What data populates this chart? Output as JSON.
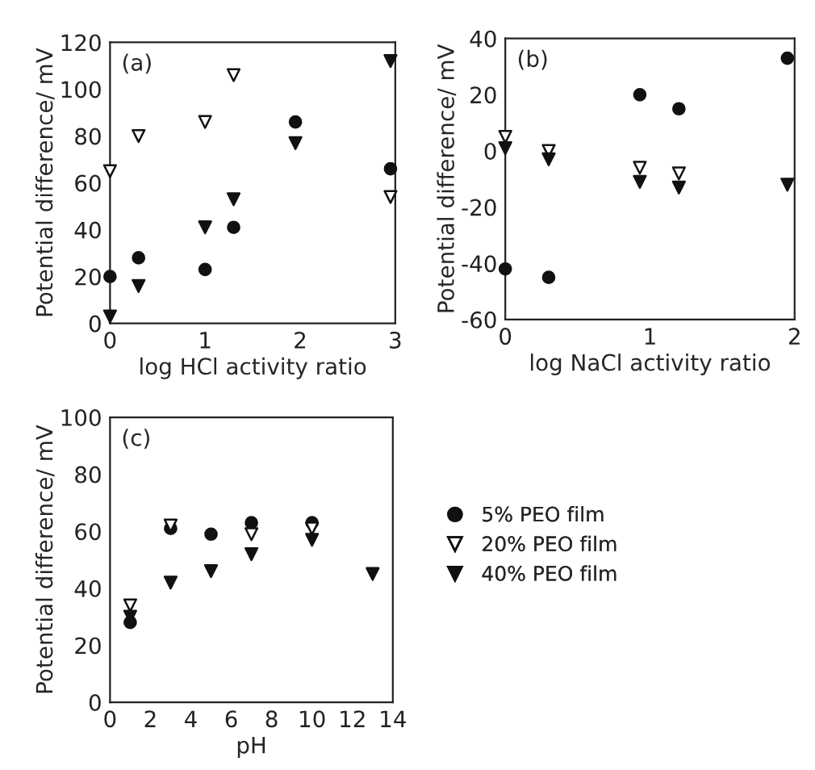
{
  "chart_data": [
    {
      "type": "scatter",
      "annotations": [
        "(a)"
      ],
      "xlabel": "log HCl activity ratio",
      "ylabel": "Potential difference/ mV",
      "x": [
        0,
        0.3,
        1,
        1.3,
        1.95,
        2.95
      ],
      "xlim": [
        0,
        3
      ],
      "xticks": [
        0,
        1,
        2,
        3
      ],
      "ylim": [
        0,
        120
      ],
      "yticks": [
        0,
        20,
        40,
        60,
        80,
        100,
        120
      ],
      "grid": false,
      "legend": false,
      "series": [
        {
          "color": "#111111",
          "marker": "circle",
          "values": [
            20,
            28,
            23,
            41,
            86,
            66
          ]
        },
        {
          "color": "#ffffff",
          "marker": "triangle",
          "values": [
            65,
            80,
            86,
            106,
            null,
            54
          ]
        },
        {
          "color": "#111111",
          "marker": "triangle",
          "values": [
            3,
            16,
            41,
            53,
            77,
            112
          ]
        }
      ]
    },
    {
      "type": "scatter",
      "annotations": [
        "(b)"
      ],
      "xlabel": "log NaCl activity ratio",
      "ylabel": "Potential difference/ mV",
      "x": [
        0,
        0.3,
        0.93,
        1.2,
        1.95
      ],
      "xlim": [
        0,
        2
      ],
      "xticks": [
        0,
        1,
        2
      ],
      "ylim": [
        -60,
        40
      ],
      "yticks": [
        -60,
        -40,
        -20,
        0,
        20,
        40
      ],
      "grid": false,
      "legend": false,
      "series": [
        {
          "color": "#111111",
          "marker": "circle",
          "values": [
            -42,
            -45,
            20,
            15,
            33
          ]
        },
        {
          "color": "#ffffff",
          "marker": "triangle",
          "values": [
            5,
            0,
            -6,
            -8,
            null
          ]
        },
        {
          "color": "#111111",
          "marker": "triangle",
          "values": [
            1,
            -3,
            -11,
            -13,
            -12
          ]
        }
      ]
    },
    {
      "type": "scatter",
      "annotations": [
        "(c)"
      ],
      "xlabel": "pH",
      "ylabel": "Potential difference/ mV",
      "x": [
        1,
        3,
        5,
        7,
        10,
        13
      ],
      "xlim": [
        0,
        14
      ],
      "xticks": [
        0,
        2,
        4,
        6,
        8,
        10,
        12,
        14
      ],
      "ylim": [
        0,
        100
      ],
      "yticks": [
        0,
        20,
        40,
        60,
        80,
        100
      ],
      "grid": false,
      "legend": "right",
      "series": [
        {
          "name": "5% PEO film",
          "color": "#111111",
          "marker": "circle",
          "values": [
            28,
            61,
            59,
            63,
            63,
            null
          ]
        },
        {
          "name": "20% PEO film",
          "color": "#ffffff",
          "marker": "triangle",
          "values": [
            34,
            62,
            null,
            59,
            61,
            null
          ]
        },
        {
          "name": "40% PEO film",
          "color": "#111111",
          "marker": "triangle",
          "values": [
            30,
            42,
            46,
            52,
            57,
            45
          ]
        }
      ]
    }
  ]
}
